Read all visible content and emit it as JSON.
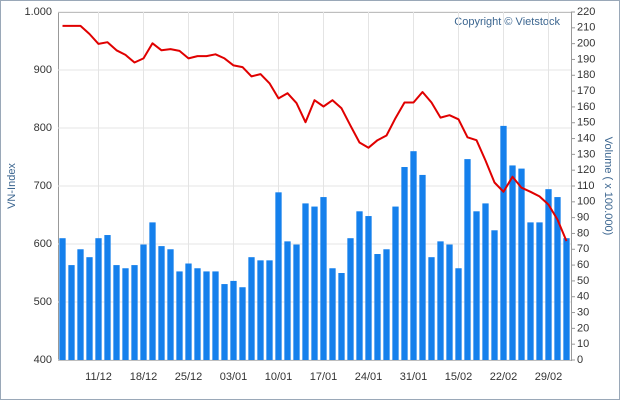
{
  "chart_data": {
    "type": "bar-line",
    "copyright": "Copyright © Vietstock",
    "y_label": "VN-Index",
    "y2_label": "Volume ( x 100.000)",
    "categories": [
      null,
      null,
      null,
      null,
      "11/12",
      null,
      null,
      null,
      null,
      "18/12",
      null,
      null,
      null,
      null,
      "25/12",
      null,
      null,
      null,
      null,
      "03/01",
      null,
      null,
      null,
      null,
      "10/01",
      null,
      null,
      null,
      null,
      "17/01",
      null,
      null,
      null,
      null,
      "24/01",
      null,
      null,
      null,
      null,
      "31/01",
      null,
      null,
      null,
      null,
      "15/02",
      null,
      null,
      null,
      null,
      "22/02",
      null,
      null,
      null,
      null,
      "29/02",
      null,
      null
    ],
    "ylim": [
      400,
      1000
    ],
    "yticks": [
      400,
      500,
      600,
      700,
      800,
      900,
      {
        "value": 1000,
        "label": "1.000"
      }
    ],
    "y2lim": [
      0,
      220
    ],
    "y2ticks": [
      0,
      10,
      20,
      30,
      40,
      50,
      60,
      70,
      80,
      90,
      100,
      110,
      120,
      130,
      140,
      150,
      160,
      170,
      180,
      190,
      200,
      210,
      220
    ],
    "grid": true,
    "series": [
      {
        "type": "bar",
        "axis": "y2",
        "color": "#1580ec",
        "values": [
          77,
          60,
          70,
          65,
          77,
          79,
          60,
          58,
          60,
          73,
          87,
          72,
          70,
          56,
          61,
          58,
          56,
          56,
          48,
          50,
          46,
          65,
          63,
          63,
          106,
          75,
          73,
          99,
          97,
          103,
          58,
          55,
          77,
          94,
          91,
          67,
          70,
          97,
          122,
          132,
          117,
          65,
          75,
          73,
          58,
          127,
          94,
          99,
          82,
          148,
          123,
          121,
          87,
          87,
          108,
          103,
          77
        ]
      },
      {
        "type": "line",
        "axis": "y",
        "color": "#e00000",
        "values": [
          976,
          976,
          976,
          962,
          945,
          948,
          934,
          926,
          913,
          920,
          946,
          934,
          936,
          933,
          920,
          924,
          924,
          927,
          920,
          908,
          905,
          889,
          893,
          877,
          851,
          860,
          843,
          810,
          848,
          837,
          848,
          834,
          804,
          775,
          766,
          779,
          787,
          817,
          844,
          844,
          862,
          844,
          818,
          822,
          815,
          784,
          779,
          744,
          706,
          690,
          716,
          697,
          690,
          682,
          668,
          642,
          605
        ]
      }
    ]
  }
}
